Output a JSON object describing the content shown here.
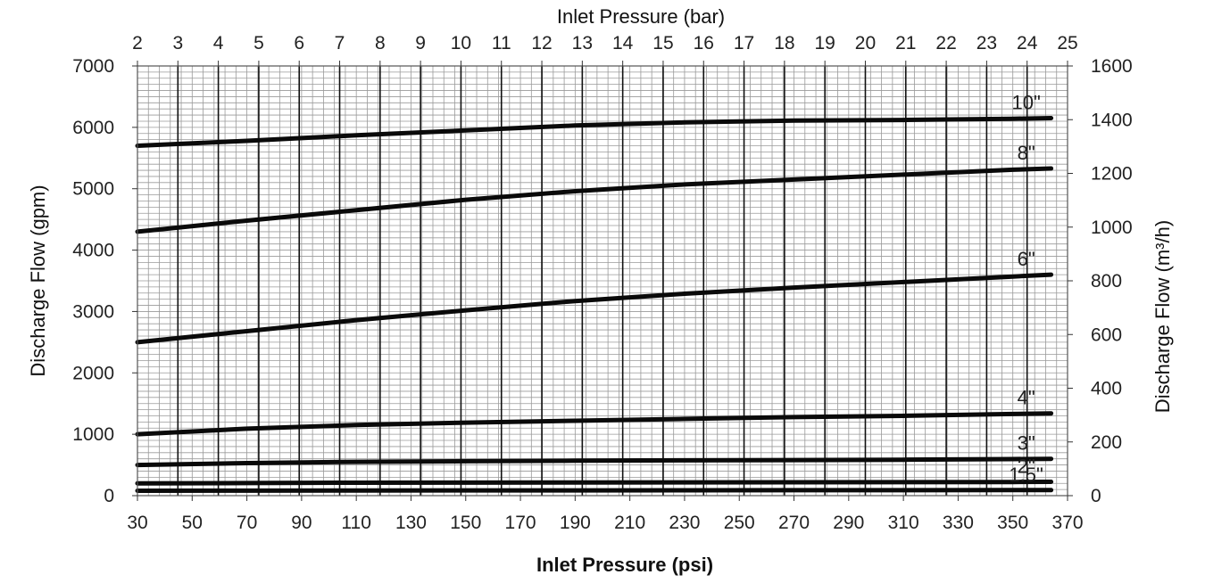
{
  "chart_data": {
    "type": "line",
    "title": "",
    "xlabel": "Inlet Pressure (psi)",
    "x2label": "Inlet Pressure (bar)",
    "ylabel": "Discharge Flow (gpm)",
    "y2label": "Discharge Flow (m³/h)",
    "xlim": [
      30,
      370
    ],
    "ylim": [
      0,
      7000
    ],
    "x2lim": [
      2,
      25
    ],
    "y2lim": [
      0,
      1600
    ],
    "x_ticks": [
      "30",
      "50",
      "70",
      "90",
      "110",
      "130",
      "150",
      "170",
      "190",
      "210",
      "230",
      "250",
      "270",
      "290",
      "310",
      "330",
      "350",
      "370"
    ],
    "x2_ticks": [
      "2",
      "3",
      "4",
      "5",
      "6",
      "7",
      "8",
      "9",
      "10",
      "11",
      "12",
      "13",
      "14",
      "15",
      "16",
      "17",
      "18",
      "19",
      "20",
      "21",
      "22",
      "23",
      "24",
      "25"
    ],
    "y_ticks": [
      "0",
      "1000",
      "2000",
      "3000",
      "4000",
      "5000",
      "6000",
      "7000"
    ],
    "y2_ticks": [
      "0",
      "200",
      "400",
      "600",
      "800",
      "1000",
      "1200",
      "1400",
      "1600"
    ],
    "grid": true,
    "x": [
      30,
      70,
      110,
      150,
      190,
      230,
      270,
      310,
      350,
      364
    ],
    "series": [
      {
        "name": "10\"",
        "values": [
          5700,
          5780,
          5870,
          5950,
          6030,
          6080,
          6110,
          6120,
          6140,
          6150
        ]
      },
      {
        "name": "8\"",
        "values": [
          4300,
          4480,
          4650,
          4820,
          4960,
          5070,
          5150,
          5230,
          5310,
          5330
        ]
      },
      {
        "name": "6\"",
        "values": [
          2500,
          2680,
          2860,
          3020,
          3170,
          3290,
          3390,
          3480,
          3570,
          3600
        ]
      },
      {
        "name": "4\"",
        "values": [
          1000,
          1090,
          1150,
          1190,
          1220,
          1250,
          1280,
          1300,
          1330,
          1340
        ]
      },
      {
        "name": "3\"",
        "values": [
          500,
          530,
          550,
          560,
          570,
          575,
          580,
          585,
          595,
          600
        ]
      },
      {
        "name": "2\"",
        "values": [
          200,
          205,
          210,
          212,
          214,
          216,
          218,
          220,
          222,
          225
        ]
      },
      {
        "name": "1.5\"",
        "values": [
          80,
          82,
          84,
          85,
          86,
          87,
          88,
          89,
          90,
          90
        ]
      }
    ]
  }
}
